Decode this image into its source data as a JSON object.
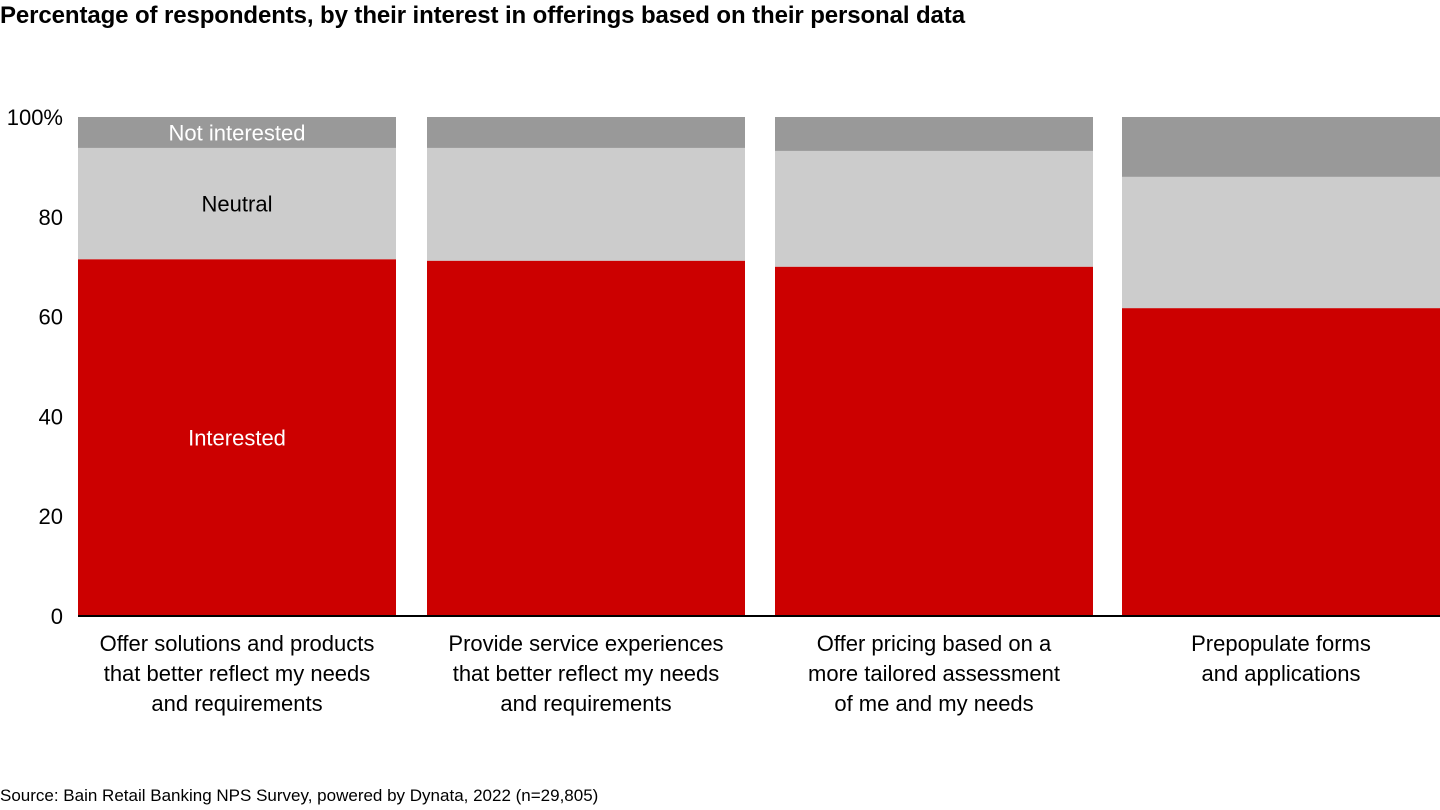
{
  "title": "Percentage of respondents, by their interest in offerings based on their personal data",
  "source": "Source: Bain Retail Banking NPS Survey, powered by Dynata, 2022 (n=29,805)",
  "colors": {
    "interested": "#cc0000",
    "neutral": "#cccccc",
    "not_interested": "#999999"
  },
  "chart_data": {
    "type": "bar",
    "stacked": true,
    "ylim": [
      0,
      100
    ],
    "y_ticks": [
      "0",
      "20",
      "40",
      "60",
      "80",
      "100%"
    ],
    "y_tick_values": [
      0,
      20,
      40,
      60,
      80,
      100
    ],
    "categories": [
      [
        "Offer solutions and products",
        "that better reflect my needs",
        "and requirements"
      ],
      [
        "Provide service experiences",
        "that better reflect my needs",
        "and requirements"
      ],
      [
        "Offer pricing based on a",
        "more tailored assessment",
        "of me and my needs"
      ],
      [
        "Prepopulate forms",
        "and applications"
      ]
    ],
    "series": [
      {
        "name": "Interested",
        "color": "#cc0000",
        "label_color": "#ffffff",
        "values": [
          71.5,
          71.2,
          70.0,
          61.7
        ]
      },
      {
        "name": "Neutral",
        "color": "#cccccc",
        "label_color": "#000000",
        "values": [
          22.3,
          22.6,
          23.2,
          26.3
        ]
      },
      {
        "name": "Not interested",
        "color": "#999999",
        "label_color": "#ffffff",
        "values": [
          6.2,
          6.2,
          6.8,
          12.0
        ]
      }
    ],
    "series_labels_on_bar": 0,
    "grid": false,
    "legend": "inline labels on first bar"
  }
}
